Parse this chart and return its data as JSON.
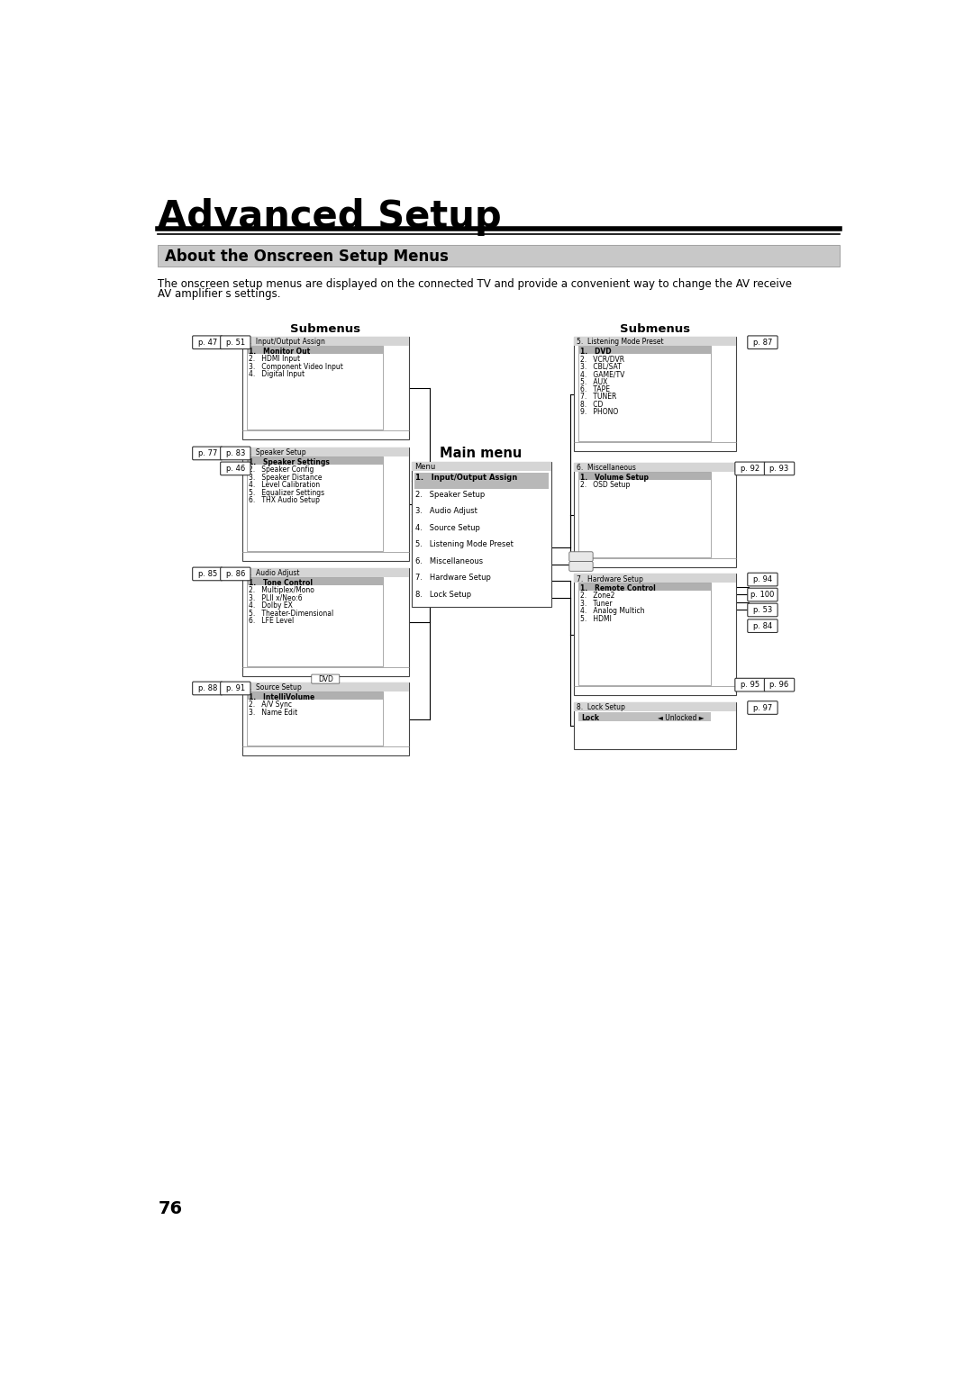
{
  "title": "Advanced Setup",
  "section_title": "About the Onscreen Setup Menus",
  "body_text_1": "The onscreen setup menus are displayed on the connected TV and provide a convenient way to change the AV receive",
  "body_text_2": "AV amplifier s settings.",
  "page_number": "76",
  "bg_color": "#ffffff"
}
